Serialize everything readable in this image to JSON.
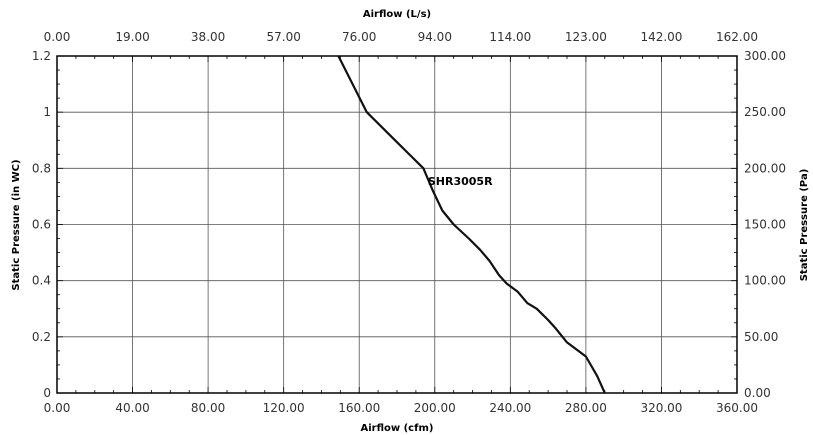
{
  "chart_data": {
    "type": "line",
    "title": "",
    "xlabel": "Airflow (cfm)",
    "ylabel": "Static Pressure (in WC)",
    "x2label": "Airflow (L/s)",
    "y2label": "Static Pressure (Pa)",
    "xlim": [
      0,
      360
    ],
    "ylim": [
      0,
      1.2
    ],
    "x_ticks": [
      "0.00",
      "40.00",
      "80.00",
      "120.00",
      "160.00",
      "200.00",
      "240.00",
      "280.00",
      "320.00",
      "360.00"
    ],
    "y_ticks": [
      "0",
      "0.2",
      "0.4",
      "0.6",
      "0.8",
      "1",
      "1.2"
    ],
    "x2_ticks": [
      "0.00",
      "19.00",
      "38.00",
      "57.00",
      "76.00",
      "94.00",
      "114.00",
      "123.00",
      "142.00",
      "162.00"
    ],
    "y2_ticks": [
      "0.00",
      "50.00",
      "100.00",
      "150.00",
      "200.00",
      "250.00",
      "300.00"
    ],
    "grid": true,
    "series": [
      {
        "name": "SHR3005R",
        "x": [
          149,
          164,
          179,
          188,
          194,
          199,
          204,
          210,
          218,
          224,
          229,
          234,
          238,
          244,
          249,
          254,
          260,
          264,
          270,
          280,
          286,
          290
        ],
        "y": [
          1.2,
          1.0,
          0.9,
          0.84,
          0.8,
          0.72,
          0.65,
          0.6,
          0.55,
          0.51,
          0.47,
          0.42,
          0.39,
          0.36,
          0.32,
          0.3,
          0.26,
          0.23,
          0.18,
          0.13,
          0.06,
          0.0
        ]
      }
    ],
    "annotations": [
      {
        "text": "SHR3005R",
        "x": 199,
        "y": 0.72
      }
    ]
  }
}
